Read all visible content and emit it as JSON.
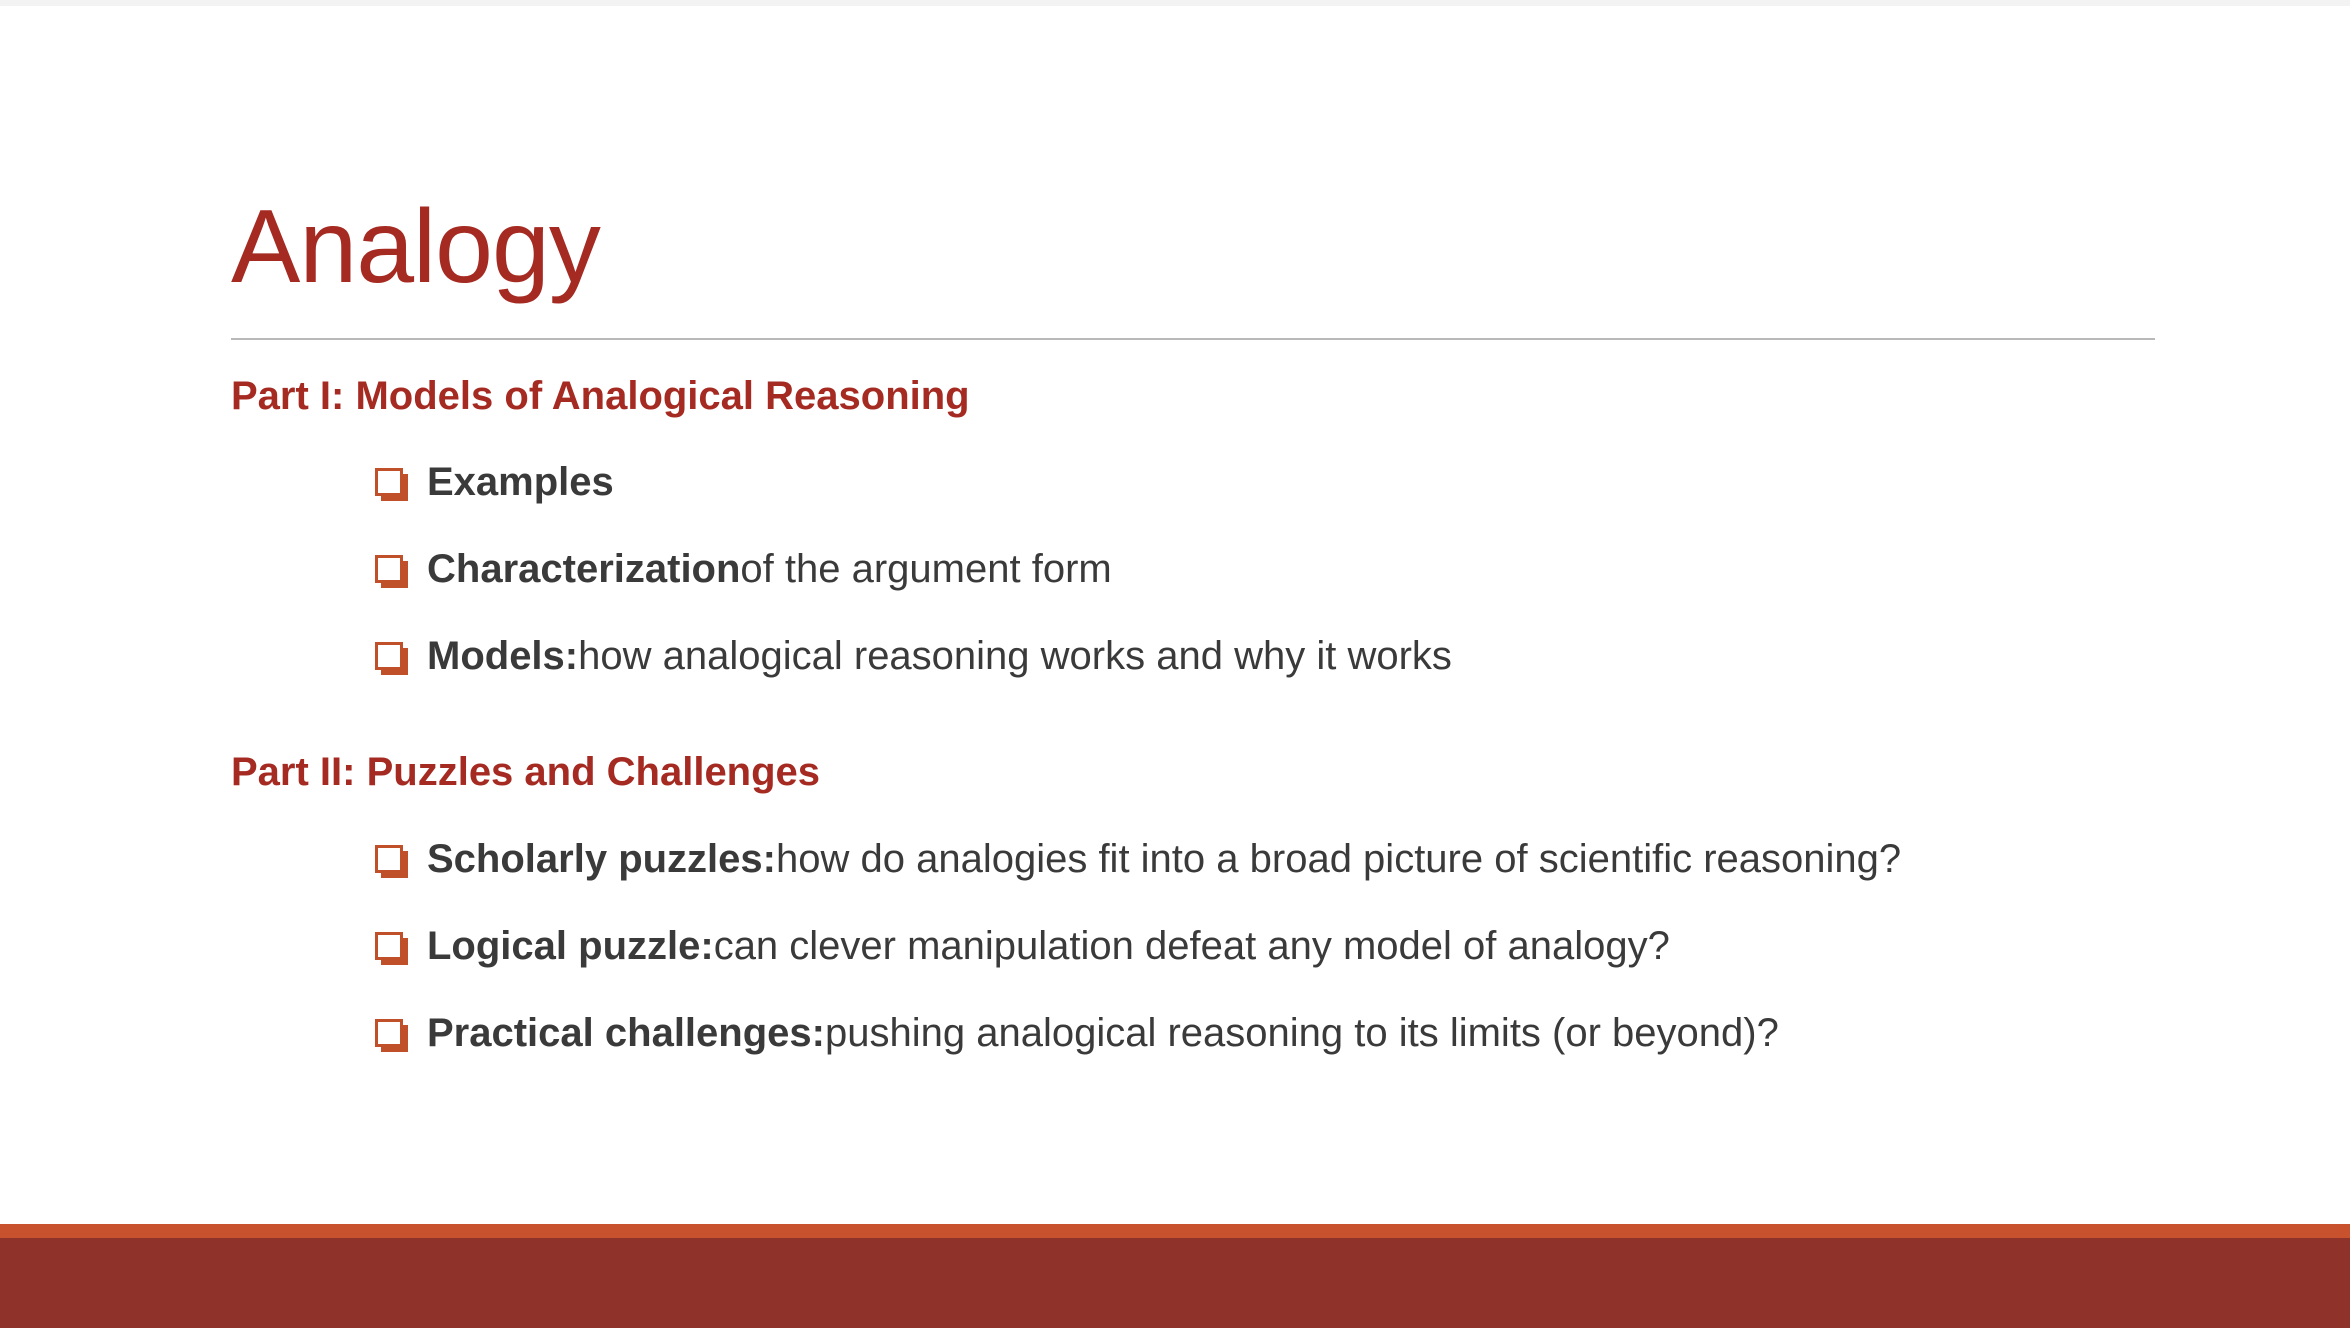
{
  "slide": {
    "title": "Analogy",
    "sections": [
      {
        "heading": "Part I: Models of Analogical Reasoning",
        "items": [
          {
            "bold": "Examples",
            "text": ""
          },
          {
            "bold": "Characterization",
            "text": " of the argument form"
          },
          {
            "bold": "Models:",
            "text": " how analogical reasoning works and why it works"
          }
        ]
      },
      {
        "heading": "Part II: Puzzles and Challenges",
        "items": [
          {
            "bold": "Scholarly puzzles:",
            "text": " how do analogies fit into a broad picture of scientific reasoning?"
          },
          {
            "bold": "Logical puzzle:",
            "text": " can clever manipulation defeat any model of analogy?"
          },
          {
            "bold": "Practical challenges:",
            "text": " pushing analogical reasoning to its limits (or beyond)?"
          }
        ]
      }
    ]
  },
  "colors": {
    "title": "#a52a22",
    "heading": "#a52a22",
    "bullet_box": "#c0502a",
    "body_text": "#3a3a3a",
    "footer_accent": "#c9522e",
    "footer_band": "#8f332a"
  },
  "icons": {
    "bullet": "checkbox-square-icon"
  }
}
